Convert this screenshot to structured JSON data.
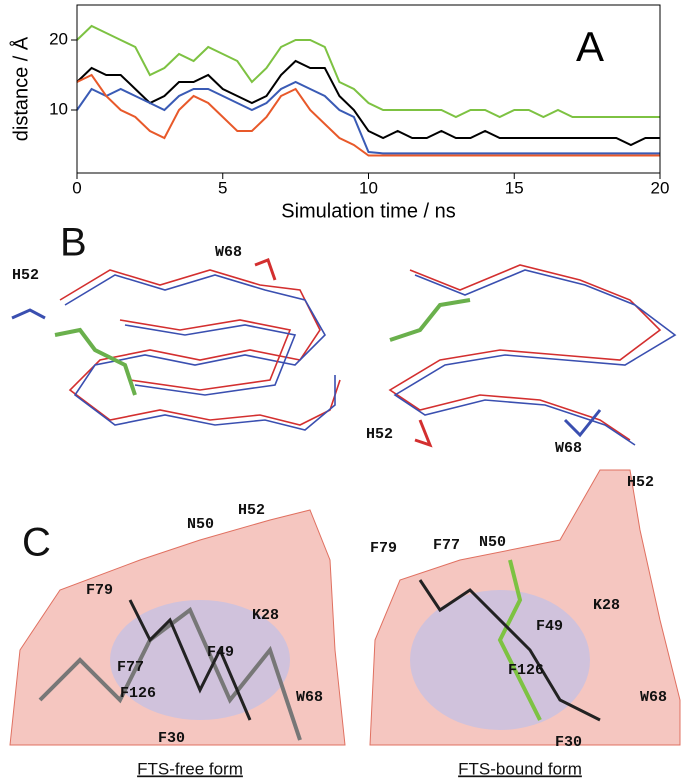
{
  "chart_data": {
    "type": "line",
    "panel_label": "A",
    "xlabel": "Simulation time / ns",
    "ylabel": "distance / Å",
    "x": [
      0,
      0.5,
      1,
      1.5,
      2,
      2.5,
      3,
      3.5,
      4,
      4.5,
      5,
      5.5,
      6,
      6.5,
      7,
      7.5,
      8,
      8.5,
      9,
      9.5,
      10,
      10.5,
      11,
      11.5,
      12,
      12.5,
      13,
      13.5,
      14,
      14.5,
      15,
      15.5,
      16,
      16.5,
      17,
      17.5,
      18,
      18.5,
      19,
      19.5,
      20
    ],
    "series": [
      {
        "color": "#7dc242",
        "values": [
          20,
          22,
          21,
          20,
          19,
          15,
          16,
          18,
          17,
          19,
          18,
          17,
          14,
          16,
          19,
          20,
          20,
          19,
          14,
          13,
          11,
          10,
          10,
          10,
          10,
          10,
          9,
          10,
          10,
          9,
          10,
          10,
          9,
          10,
          9,
          9,
          9,
          9,
          9,
          9,
          9
        ]
      },
      {
        "color": "#000000",
        "values": [
          14,
          16,
          15,
          15,
          13,
          11,
          12,
          14,
          14,
          15,
          13,
          12,
          11,
          12,
          15,
          17,
          16,
          16,
          12,
          10,
          7,
          6,
          7,
          6,
          6,
          7,
          6,
          6,
          7,
          6,
          6,
          6,
          6,
          6,
          6,
          6,
          6,
          6,
          5,
          6,
          6
        ]
      },
      {
        "color": "#3a5bb5",
        "values": [
          10,
          13,
          12,
          13,
          12,
          11,
          10,
          12,
          13,
          13,
          12,
          11,
          10,
          11,
          13,
          14,
          13,
          12,
          10,
          9,
          4,
          3.8,
          3.8,
          3.8,
          3.8,
          3.8,
          3.8,
          3.8,
          3.8,
          3.8,
          3.8,
          3.8,
          3.8,
          3.8,
          3.8,
          3.8,
          3.8,
          3.8,
          3.8,
          3.8,
          3.8
        ]
      },
      {
        "color": "#e8592a",
        "values": [
          14,
          15,
          12,
          10,
          9,
          7,
          6,
          10,
          12,
          11,
          9,
          7,
          7,
          9,
          12,
          13,
          10,
          8,
          6,
          5,
          3.5,
          3.5,
          3.5,
          3.5,
          3.5,
          3.5,
          3.5,
          3.5,
          3.5,
          3.5,
          3.5,
          3.5,
          3.5,
          3.5,
          3.5,
          3.5,
          3.5,
          3.5,
          3.5,
          3.5,
          3.5
        ]
      }
    ],
    "xlim": [
      0,
      20
    ],
    "ylim": [
      1,
      25
    ],
    "xticks": [
      0,
      5,
      10,
      15,
      20
    ],
    "yticks": [
      10,
      20
    ]
  },
  "panel_b": {
    "label": "B",
    "left": [
      "H52",
      "W68"
    ],
    "right": [
      "H52",
      "W68"
    ]
  },
  "panel_c": {
    "label": "C",
    "left": [
      "N50",
      "H52",
      "F79",
      "K28",
      "F77",
      "F49",
      "F126",
      "W68",
      "F30"
    ],
    "right": [
      "F79",
      "F77",
      "N50",
      "H52",
      "K28",
      "F49",
      "F126",
      "W68",
      "F30"
    ],
    "captions": [
      "FTS-free form",
      "FTS-bound form"
    ]
  }
}
